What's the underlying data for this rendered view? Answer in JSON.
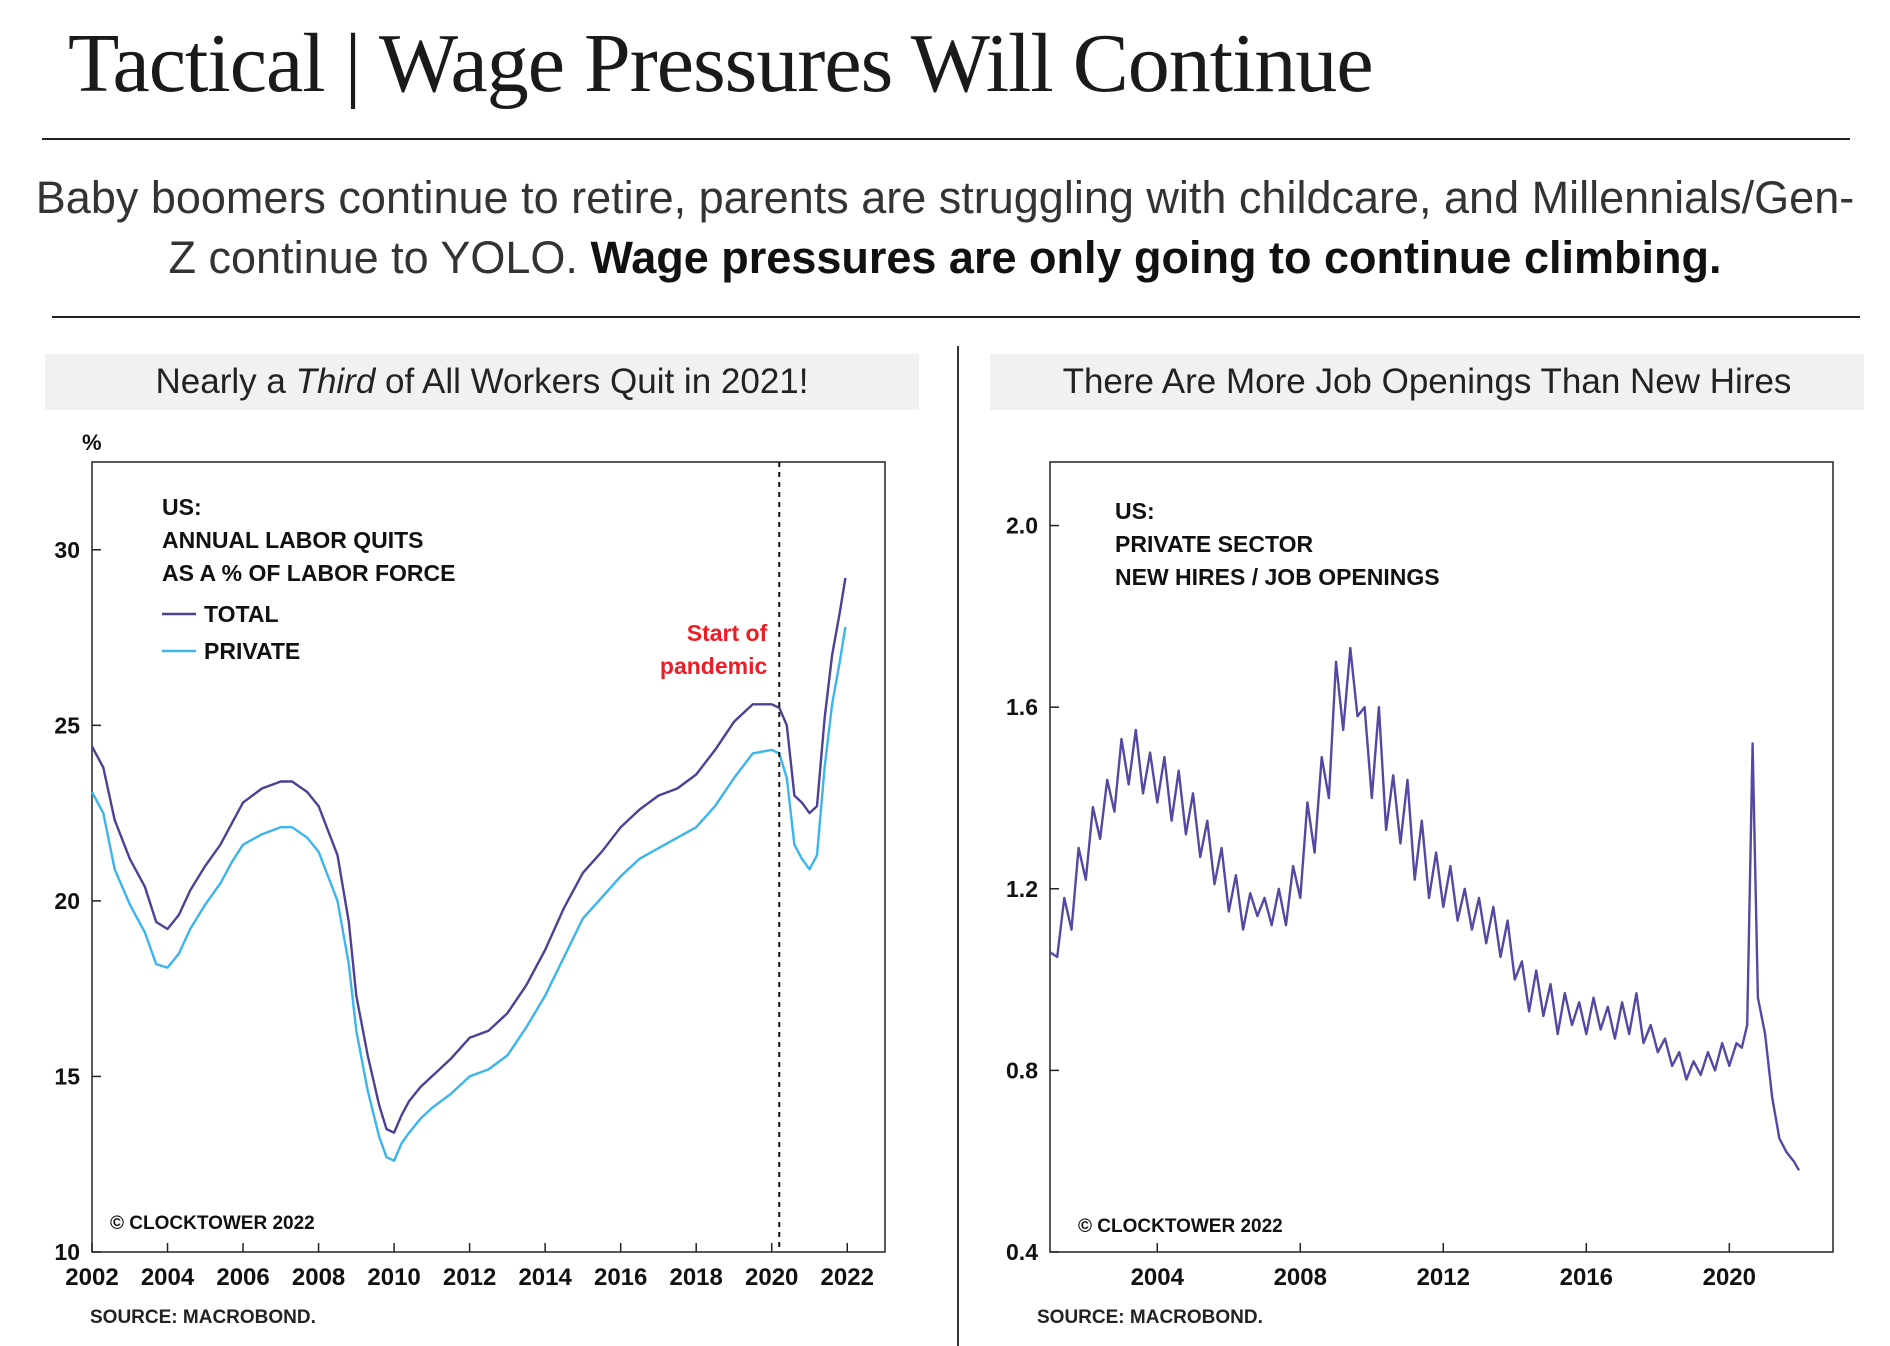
{
  "page": {
    "title": "Tactical | Wage Pressures Will Continue",
    "subtitle_regular": "Baby boomers continue to retire, parents are struggling with childcare, and Millennials/Gen-Z continue to YOLO.",
    "subtitle_bold": "Wage pressures are only going to continue climbing."
  },
  "colors": {
    "total": "#4f3f95",
    "private": "#3cb4ec",
    "pandemic": "#ee1c25",
    "hires": "#5548a3"
  },
  "chart_data": [
    {
      "type": "line",
      "header_before": "Nearly a",
      "header_italic": "Third",
      "header_after": "of All Workers Quit in 2021!",
      "yunit": "%",
      "ylim": [
        10,
        32.5
      ],
      "xlim": [
        2002,
        2023
      ],
      "yticks": [
        10,
        15,
        20,
        25,
        30
      ],
      "xticks": [
        2002,
        2004,
        2006,
        2008,
        2010,
        2012,
        2014,
        2016,
        2018,
        2020,
        2022
      ],
      "legend_title": [
        "US:",
        "ANNUAL LABOR QUITS",
        "AS A % OF LABOR FORCE"
      ],
      "series": [
        {
          "name": "TOTAL",
          "x": [
            2002.0,
            2002.3,
            2002.6,
            2003.0,
            2003.4,
            2003.7,
            2004.0,
            2004.3,
            2004.6,
            2005.0,
            2005.4,
            2005.7,
            2006.0,
            2006.5,
            2007.0,
            2007.3,
            2007.7,
            2008.0,
            2008.5,
            2008.8,
            2009.0,
            2009.3,
            2009.6,
            2009.8,
            2010.0,
            2010.2,
            2010.4,
            2010.7,
            2011.0,
            2011.5,
            2012.0,
            2012.5,
            2013.0,
            2013.5,
            2014.0,
            2014.5,
            2015.0,
            2015.5,
            2016.0,
            2016.5,
            2017.0,
            2017.5,
            2018.0,
            2018.5,
            2019.0,
            2019.5,
            2020.0,
            2020.2,
            2020.4,
            2020.6,
            2020.8,
            2021.0,
            2021.2,
            2021.4,
            2021.6,
            2021.8,
            2021.95
          ],
          "values": [
            24.4,
            23.8,
            22.3,
            21.2,
            20.4,
            19.4,
            19.2,
            19.6,
            20.3,
            21.0,
            21.6,
            22.2,
            22.8,
            23.2,
            23.4,
            23.4,
            23.1,
            22.7,
            21.3,
            19.4,
            17.3,
            15.6,
            14.2,
            13.5,
            13.4,
            13.9,
            14.3,
            14.7,
            15.0,
            15.5,
            16.1,
            16.3,
            16.8,
            17.6,
            18.6,
            19.8,
            20.8,
            21.4,
            22.1,
            22.6,
            23.0,
            23.2,
            23.6,
            24.3,
            25.1,
            25.6,
            25.6,
            25.5,
            25.0,
            23.0,
            22.8,
            22.5,
            22.7,
            25.2,
            27.0,
            28.2,
            29.2
          ]
        },
        {
          "name": "PRIVATE",
          "x": [
            2002.0,
            2002.3,
            2002.6,
            2003.0,
            2003.4,
            2003.7,
            2004.0,
            2004.3,
            2004.6,
            2005.0,
            2005.4,
            2005.7,
            2006.0,
            2006.5,
            2007.0,
            2007.3,
            2007.7,
            2008.0,
            2008.5,
            2008.8,
            2009.0,
            2009.3,
            2009.6,
            2009.8,
            2010.0,
            2010.2,
            2010.4,
            2010.7,
            2011.0,
            2011.5,
            2012.0,
            2012.5,
            2013.0,
            2013.5,
            2014.0,
            2014.5,
            2015.0,
            2015.5,
            2016.0,
            2016.5,
            2017.0,
            2017.5,
            2018.0,
            2018.5,
            2019.0,
            2019.5,
            2020.0,
            2020.2,
            2020.4,
            2020.6,
            2020.8,
            2021.0,
            2021.2,
            2021.4,
            2021.6,
            2021.8,
            2021.95
          ],
          "values": [
            23.1,
            22.5,
            20.9,
            19.9,
            19.1,
            18.2,
            18.1,
            18.5,
            19.2,
            19.9,
            20.5,
            21.1,
            21.6,
            21.9,
            22.1,
            22.1,
            21.8,
            21.4,
            20.0,
            18.2,
            16.3,
            14.6,
            13.3,
            12.7,
            12.6,
            13.1,
            13.4,
            13.8,
            14.1,
            14.5,
            15.0,
            15.2,
            15.6,
            16.4,
            17.3,
            18.4,
            19.5,
            20.1,
            20.7,
            21.2,
            21.5,
            21.8,
            22.1,
            22.7,
            23.5,
            24.2,
            24.3,
            24.2,
            23.5,
            21.6,
            21.2,
            20.9,
            21.3,
            23.8,
            25.6,
            26.8,
            27.8
          ]
        }
      ],
      "annotation": {
        "lines": [
          "Start of",
          "pandemic"
        ],
        "x": 2020.2
      },
      "copyright": "© CLOCKTOWER 2022",
      "source": "SOURCE: MACROBOND."
    },
    {
      "type": "line",
      "header": "There Are More Job Openings Than New Hires",
      "ylim": [
        0.4,
        2.14
      ],
      "xlim": [
        2001,
        2022.9
      ],
      "yticks": [
        0.4,
        0.8,
        1.2,
        1.6,
        2.0
      ],
      "xticks": [
        2004,
        2008,
        2012,
        2016,
        2020
      ],
      "legend_title": [
        "US:",
        "PRIVATE SECTOR",
        "NEW HIRES / JOB OPENINGS"
      ],
      "series": [
        {
          "name": "",
          "x": [
            2001.0,
            2001.2,
            2001.4,
            2001.6,
            2001.8,
            2002.0,
            2002.2,
            2002.4,
            2002.6,
            2002.8,
            2003.0,
            2003.2,
            2003.4,
            2003.6,
            2003.8,
            2004.0,
            2004.2,
            2004.4,
            2004.6,
            2004.8,
            2005.0,
            2005.2,
            2005.4,
            2005.6,
            2005.8,
            2006.0,
            2006.2,
            2006.4,
            2006.6,
            2006.8,
            2007.0,
            2007.2,
            2007.4,
            2007.6,
            2007.8,
            2008.0,
            2008.2,
            2008.4,
            2008.6,
            2008.8,
            2009.0,
            2009.2,
            2009.4,
            2009.6,
            2009.8,
            2010.0,
            2010.2,
            2010.4,
            2010.6,
            2010.8,
            2011.0,
            2011.2,
            2011.4,
            2011.6,
            2011.8,
            2012.0,
            2012.2,
            2012.4,
            2012.6,
            2012.8,
            2013.0,
            2013.2,
            2013.4,
            2013.6,
            2013.8,
            2014.0,
            2014.2,
            2014.4,
            2014.6,
            2014.8,
            2015.0,
            2015.2,
            2015.4,
            2015.6,
            2015.8,
            2016.0,
            2016.2,
            2016.4,
            2016.6,
            2016.8,
            2017.0,
            2017.2,
            2017.4,
            2017.6,
            2017.8,
            2018.0,
            2018.2,
            2018.4,
            2018.6,
            2018.8,
            2019.0,
            2019.2,
            2019.4,
            2019.6,
            2019.8,
            2020.0,
            2020.2,
            2020.35,
            2020.5,
            2020.65,
            2020.8,
            2021.0,
            2021.2,
            2021.4,
            2021.6,
            2021.8,
            2021.95
          ],
          "values": [
            1.06,
            1.05,
            1.18,
            1.11,
            1.29,
            1.22,
            1.38,
            1.31,
            1.44,
            1.37,
            1.53,
            1.43,
            1.55,
            1.41,
            1.5,
            1.39,
            1.49,
            1.35,
            1.46,
            1.32,
            1.41,
            1.27,
            1.35,
            1.21,
            1.29,
            1.15,
            1.23,
            1.11,
            1.19,
            1.14,
            1.18,
            1.12,
            1.2,
            1.12,
            1.25,
            1.18,
            1.39,
            1.28,
            1.49,
            1.4,
            1.7,
            1.55,
            1.73,
            1.58,
            1.6,
            1.4,
            1.6,
            1.33,
            1.45,
            1.3,
            1.44,
            1.22,
            1.35,
            1.18,
            1.28,
            1.16,
            1.25,
            1.13,
            1.2,
            1.11,
            1.18,
            1.08,
            1.16,
            1.05,
            1.13,
            1.0,
            1.04,
            0.93,
            1.02,
            0.92,
            0.99,
            0.88,
            0.97,
            0.9,
            0.95,
            0.88,
            0.96,
            0.89,
            0.94,
            0.87,
            0.95,
            0.88,
            0.97,
            0.86,
            0.9,
            0.84,
            0.87,
            0.81,
            0.84,
            0.78,
            0.82,
            0.79,
            0.84,
            0.8,
            0.86,
            0.81,
            0.86,
            0.85,
            0.9,
            1.52,
            0.96,
            0.88,
            0.74,
            0.65,
            0.62,
            0.6,
            0.58
          ]
        }
      ],
      "copyright": "© CLOCKTOWER 2022",
      "source": "SOURCE: MACROBOND."
    }
  ]
}
